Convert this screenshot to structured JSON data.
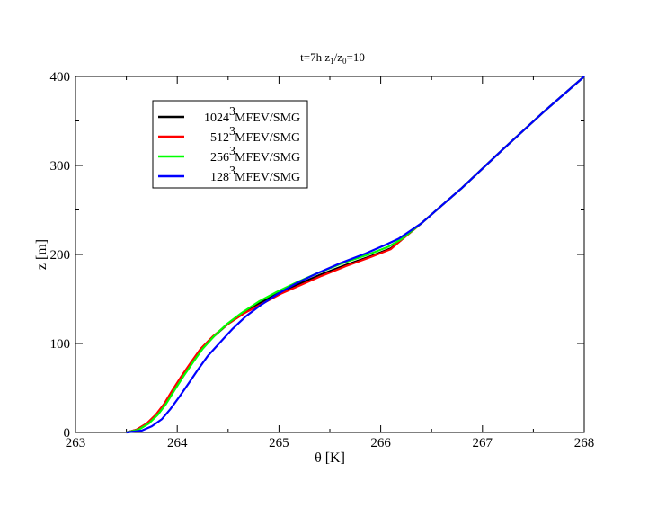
{
  "chart_data": {
    "type": "line",
    "title": "t=7h  z",
    "title_sub1": "1",
    "title_mid": "/z",
    "title_sub2": "0",
    "title_tail": "=10",
    "xlabel": "θ  [K]",
    "ylabel": "z [m]",
    "xlim": [
      263,
      268
    ],
    "ylim": [
      0,
      400
    ],
    "x_ticks": [
      "263",
      "264",
      "265",
      "266",
      "267",
      "268"
    ],
    "y_ticks": [
      "0",
      "100",
      "200",
      "300",
      "400"
    ],
    "grid": false,
    "legend_placement": "top-left",
    "series": [
      {
        "name_base": "1024",
        "name_sup": "3",
        "name_rest": " MFEV/SMG",
        "color": "#000000",
        "x": [
          263.5,
          263.6,
          263.7,
          263.8,
          263.88,
          263.96,
          264.05,
          264.14,
          264.24,
          264.36,
          264.5,
          264.65,
          264.82,
          265.0,
          265.2,
          265.4,
          265.65,
          265.9,
          266.1,
          266.2,
          266.4,
          266.8,
          267.2,
          267.6,
          268.0
        ],
        "y": [
          0,
          3,
          10,
          20,
          32,
          47,
          63,
          78,
          94,
          108,
          122,
          134,
          146,
          157,
          167,
          177,
          188,
          198,
          207,
          216,
          235,
          275,
          318,
          360,
          400
        ]
      },
      {
        "name_base": "512",
        "name_sup": "3",
        "name_rest": " MFEV/SMG",
        "color": "#ff0000",
        "x": [
          263.5,
          263.6,
          263.7,
          263.79,
          263.87,
          263.95,
          264.04,
          264.13,
          264.23,
          264.35,
          264.5,
          264.66,
          264.84,
          265.02,
          265.22,
          265.42,
          265.66,
          265.9,
          266.1,
          266.2,
          266.4,
          266.8,
          267.2,
          267.6,
          268.0
        ],
        "y": [
          0,
          3,
          10,
          20,
          32,
          47,
          63,
          78,
          94,
          108,
          122,
          134,
          145,
          156,
          166,
          176,
          187,
          197,
          206,
          216,
          235,
          275,
          318,
          360,
          400
        ]
      },
      {
        "name_base": "256",
        "name_sup": "3",
        "name_rest": " MFEV/SMG",
        "color": "#00ff00",
        "x": [
          263.5,
          263.62,
          263.72,
          263.81,
          263.89,
          263.97,
          264.06,
          264.15,
          264.25,
          264.36,
          264.49,
          264.63,
          264.8,
          264.98,
          265.18,
          265.38,
          265.62,
          265.88,
          266.08,
          266.2,
          266.4,
          266.8,
          267.2,
          267.6,
          268.0
        ],
        "y": [
          0,
          3,
          10,
          20,
          32,
          47,
          63,
          78,
          94,
          108,
          122,
          134,
          147,
          158,
          169,
          179,
          190,
          200,
          209,
          217,
          235,
          275,
          318,
          360,
          400
        ]
      },
      {
        "name_base": "128",
        "name_sup": "3",
        "name_rest": " MFEV/SMG",
        "color": "#0000ff",
        "x": [
          263.5,
          263.65,
          263.75,
          263.85,
          263.93,
          264.02,
          264.11,
          264.2,
          264.3,
          264.42,
          264.54,
          264.67,
          264.82,
          264.98,
          265.16,
          265.36,
          265.6,
          265.85,
          266.05,
          266.18,
          266.4,
          266.8,
          267.2,
          267.6,
          268.0
        ],
        "y": [
          0,
          2,
          7,
          15,
          26,
          40,
          55,
          70,
          86,
          101,
          116,
          130,
          143,
          155,
          167,
          178,
          190,
          201,
          211,
          218,
          235,
          275,
          318,
          360,
          400
        ]
      }
    ]
  }
}
